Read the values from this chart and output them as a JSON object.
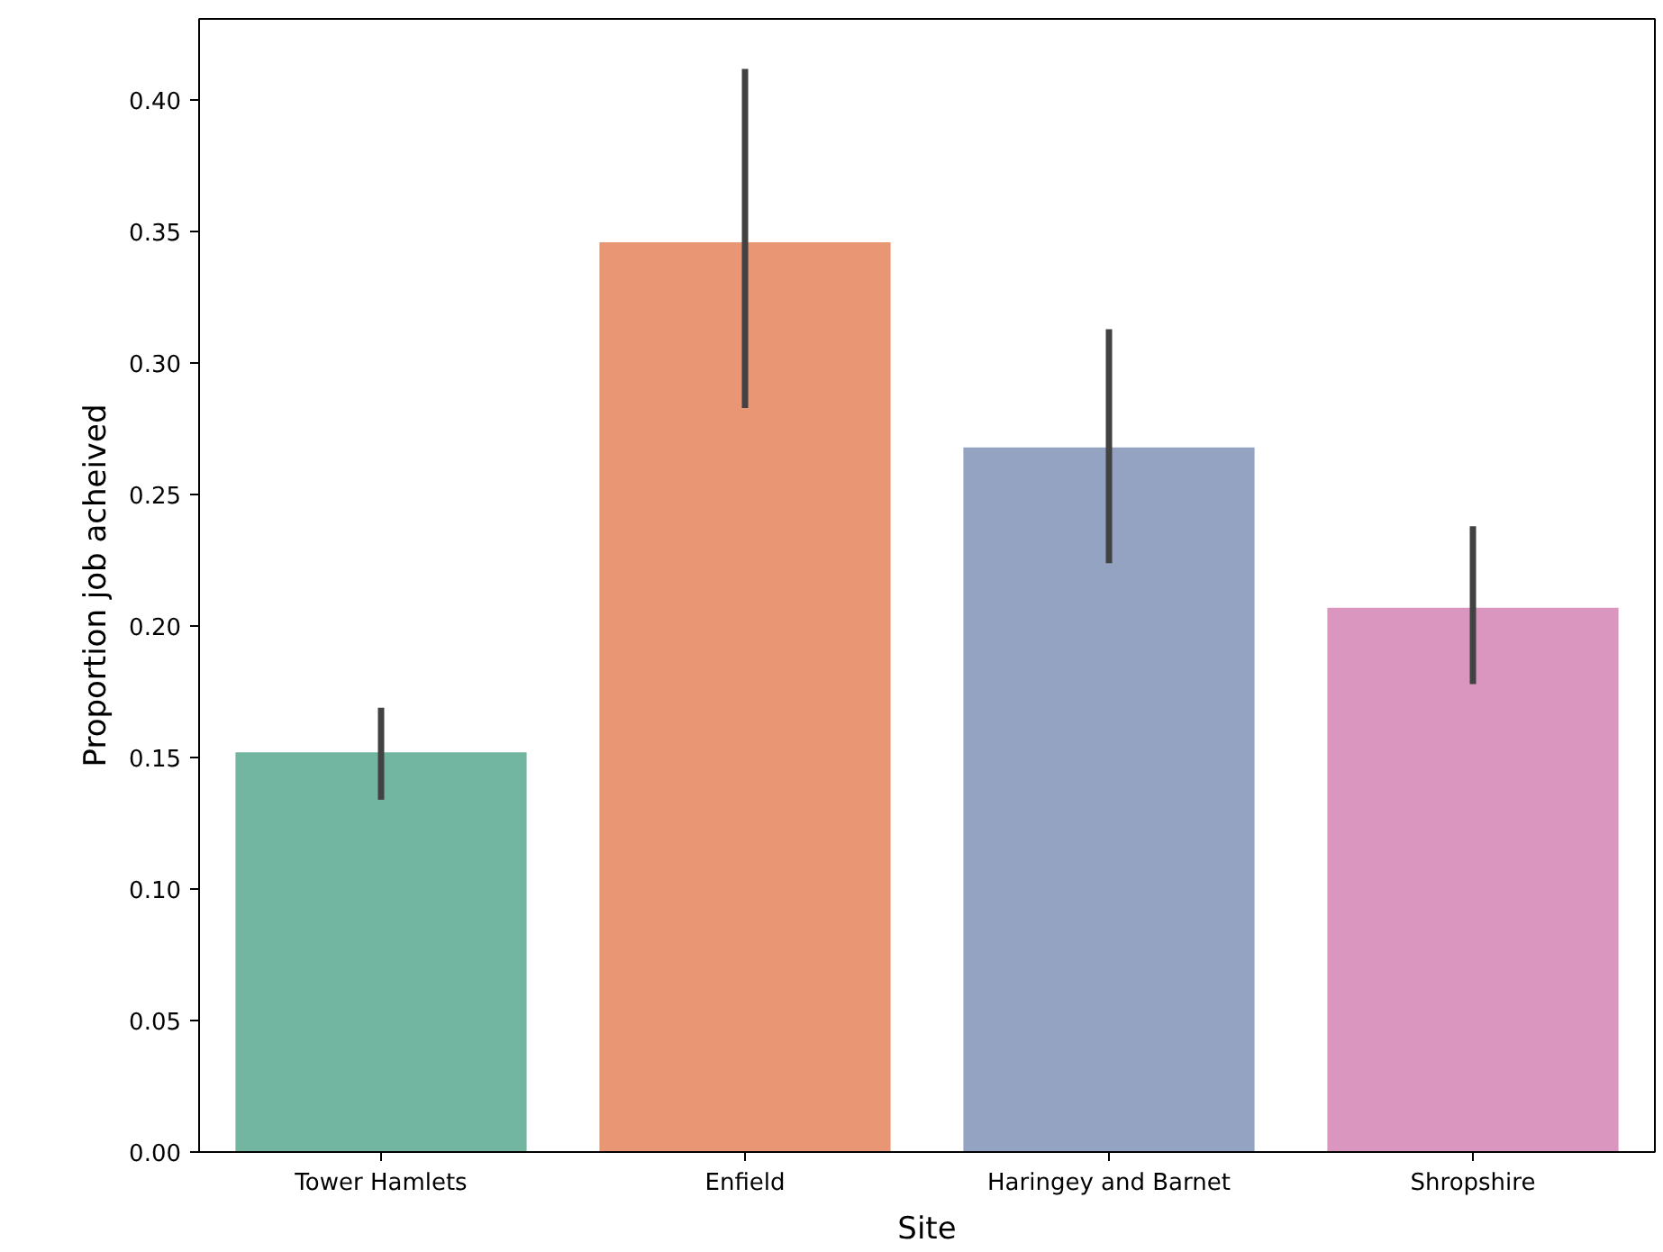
{
  "chart_data": {
    "type": "bar",
    "xlabel": "Site",
    "ylabel": "Proportion job acheived",
    "categories": [
      "Tower Hamlets",
      "Enfield",
      "Haringey and Barnet",
      "Shropshire"
    ],
    "values": [
      0.152,
      0.346,
      0.268,
      0.207
    ],
    "colors": [
      "#72b6a1",
      "#e99675",
      "#95a3c3",
      "#db96c0"
    ],
    "errors": [
      [
        0.134,
        0.169
      ],
      [
        0.283,
        0.412
      ],
      [
        0.224,
        0.313
      ],
      [
        0.178,
        0.238
      ]
    ],
    "ylim": [
      0,
      0.431
    ],
    "yticks": [
      {
        "value": 0,
        "label": "0.00"
      },
      {
        "value": 0.05,
        "label": "0.05"
      },
      {
        "value": 0.1,
        "label": "0.10"
      },
      {
        "value": 0.15,
        "label": "0.15"
      },
      {
        "value": 0.2,
        "label": "0.20"
      },
      {
        "value": 0.25,
        "label": "0.25"
      },
      {
        "value": 0.3,
        "label": "0.30"
      },
      {
        "value": 0.35,
        "label": "0.35"
      },
      {
        "value": 0.4,
        "label": "0.40"
      }
    ],
    "grid": false
  }
}
